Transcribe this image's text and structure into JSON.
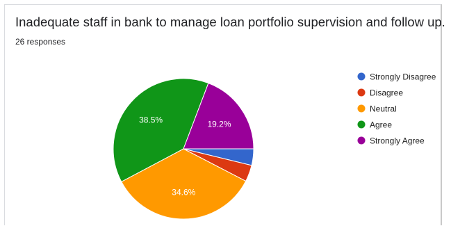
{
  "question": {
    "title": "Inadequate staff in bank to manage loan portfolio supervision and follow up.",
    "responses": "26 responses"
  },
  "chart_data": {
    "type": "pie",
    "start": "Strongly Disagree",
    "slices": [
      {
        "label": "Strongly Disagree",
        "value": 3.8,
        "color": "#3366cc",
        "display": ""
      },
      {
        "label": "Disagree",
        "value": 3.8,
        "color": "#dc3912",
        "display": ""
      },
      {
        "label": "Neutral",
        "value": 34.6,
        "color": "#ff9900",
        "display": "34.6%"
      },
      {
        "label": "Agree",
        "value": 38.5,
        "color": "#109618",
        "display": "38.5%"
      },
      {
        "label": "Strongly Agree",
        "value": 19.2,
        "color": "#990099",
        "display": "19.2%"
      }
    ],
    "legend_position": "right"
  }
}
